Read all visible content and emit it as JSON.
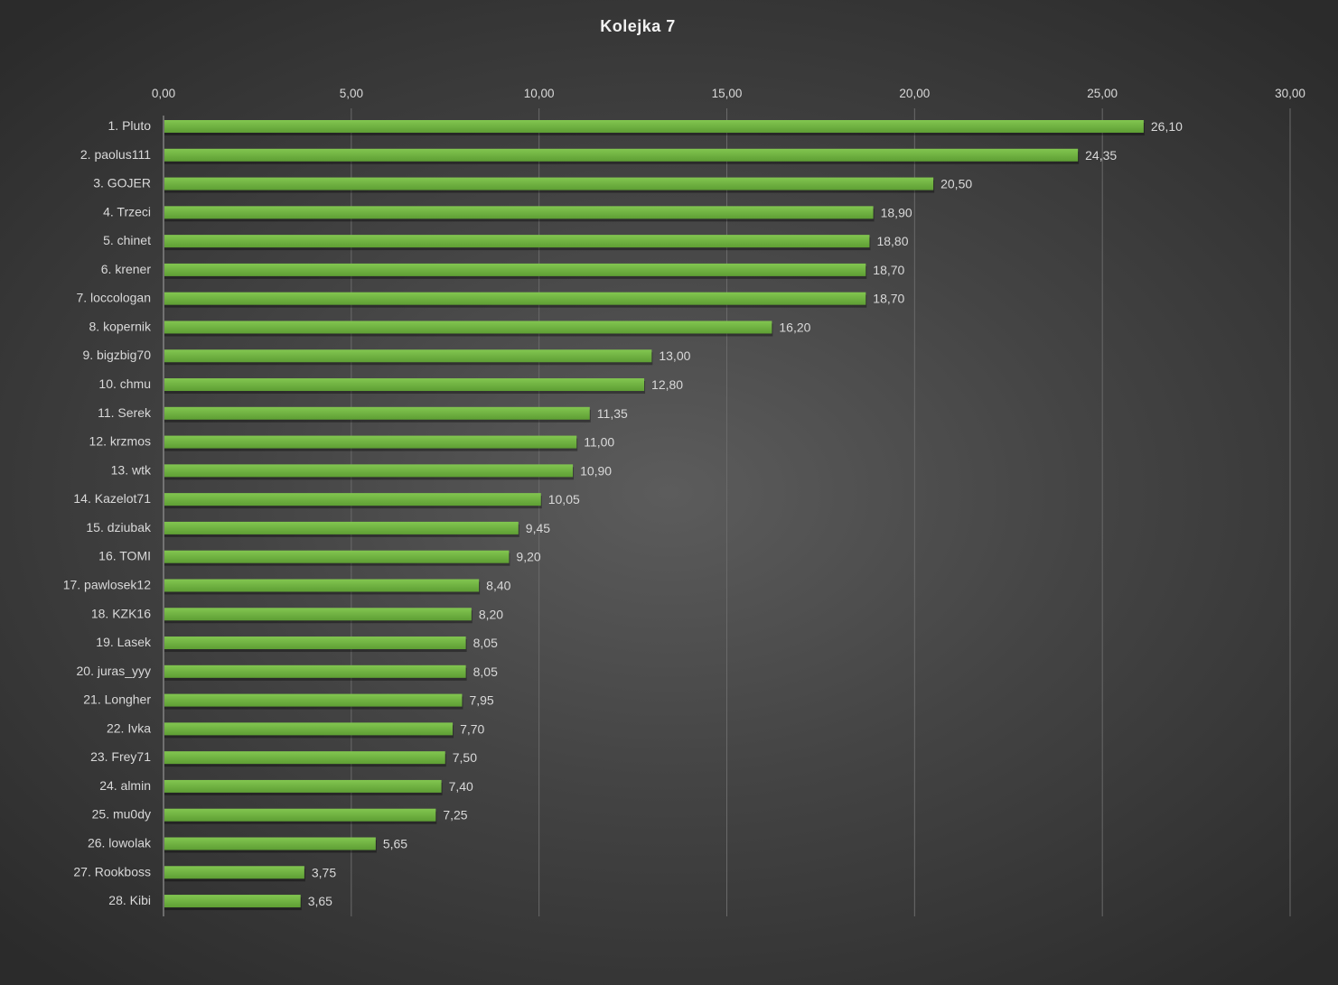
{
  "chart_data": {
    "type": "bar",
    "orientation": "horizontal",
    "title": "Kolejka  7",
    "xlabel": "",
    "ylabel": "",
    "xlim": [
      0,
      30
    ],
    "ticks": [
      "0,00",
      "5,00",
      "10,00",
      "15,00",
      "20,00",
      "25,00",
      "30,00"
    ],
    "tick_values": [
      0,
      5,
      10,
      15,
      20,
      25,
      30
    ],
    "grid": true,
    "axis_position": "top",
    "bar_color": "#6fb03f",
    "categories": [
      "1. Pluto",
      "2. paolus111",
      "3. GOJER",
      "4. Trzeci",
      "5. chinet",
      "6. krener",
      "7. loccologan",
      "8. kopernik",
      "9. bigzbig70",
      "10. chmu",
      "11. Serek",
      "12. krzmos",
      "13. wtk",
      "14. Kazelot71",
      "15. dziubak",
      "16. TOMI",
      "17. pawlosek12",
      "18. KZK16",
      "19. Lasek",
      "20. juras_yyy",
      "21. Longher",
      "22. Ivka",
      "23. Frey71",
      "24. almin",
      "25. mu0dy",
      "26. lowolak",
      "27. Rookboss",
      "28. Kibi"
    ],
    "values": [
      26.1,
      24.35,
      20.5,
      18.9,
      18.8,
      18.7,
      18.7,
      16.2,
      13.0,
      12.8,
      11.35,
      11.0,
      10.9,
      10.05,
      9.45,
      9.2,
      8.4,
      8.2,
      8.05,
      8.05,
      7.95,
      7.7,
      7.5,
      7.4,
      7.25,
      5.65,
      3.75,
      3.65
    ],
    "labels": [
      "26,10",
      "24,35",
      "20,50",
      "18,90",
      "18,80",
      "18,70",
      "18,70",
      "16,20",
      "13,00",
      "12,80",
      "11,35",
      "11,00",
      "10,90",
      "10,05",
      "9,45",
      "9,20",
      "8,40",
      "8,20",
      "8,05",
      "8,05",
      "7,95",
      "7,70",
      "7,50",
      "7,40",
      "7,25",
      "5,65",
      "3,75",
      "3,65"
    ]
  }
}
